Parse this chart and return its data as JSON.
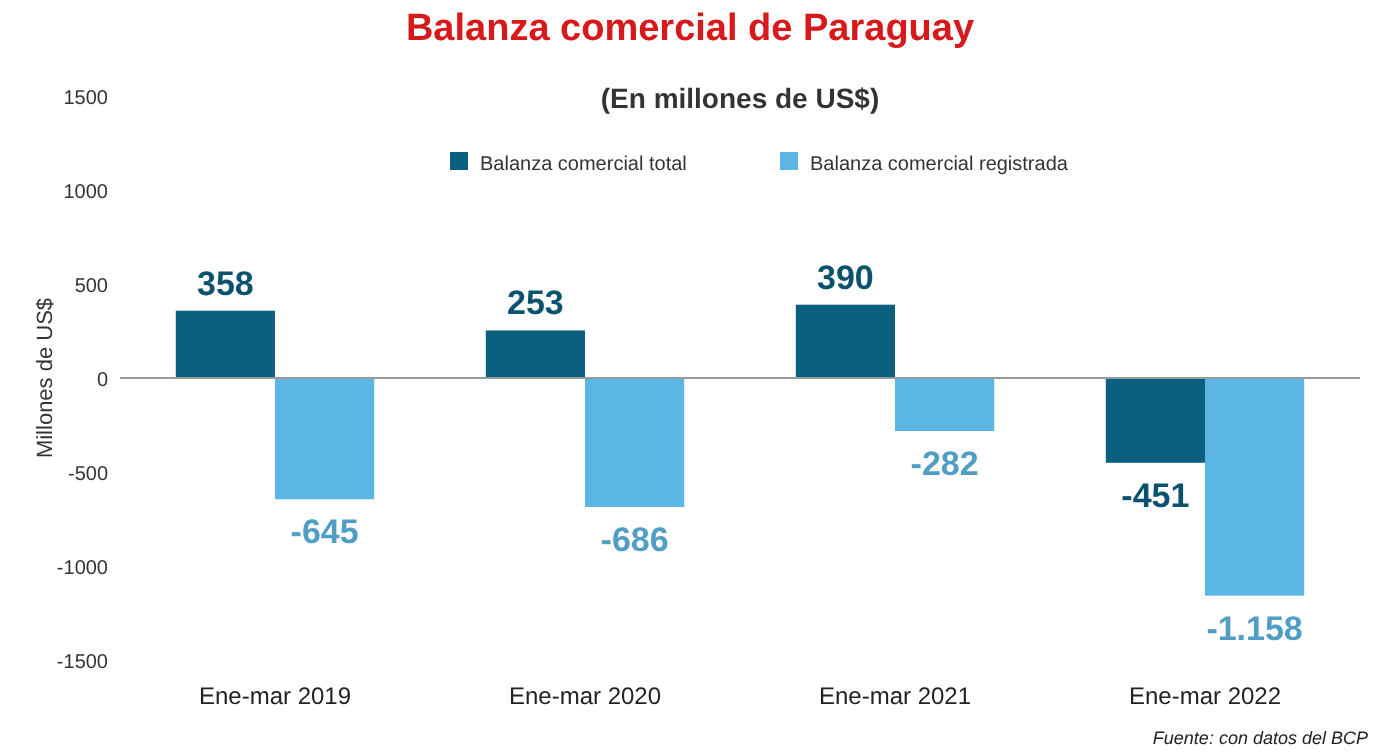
{
  "chart_data": {
    "type": "bar",
    "title": "Balanza comercial de Paraguay",
    "subtitle": "(En millones de US$)",
    "ylabel": "Millones de US$",
    "categories": [
      "Ene-mar 2019",
      "Ene-mar 2020",
      "Ene-mar 2021",
      "Ene-mar 2022"
    ],
    "series": [
      {
        "name": "Balanza comercial total",
        "color": "#0b5f7f",
        "values": [
          358,
          253,
          390,
          -451
        ],
        "value_labels": [
          "358",
          "253",
          "390",
          "-451"
        ]
      },
      {
        "name": "Balanza comercial registrada",
        "color": "#5cb6e4",
        "values": [
          -645,
          -686,
          -282,
          -1158
        ],
        "value_labels": [
          "-645",
          "-686",
          "-282",
          "-1.158"
        ]
      }
    ],
    "ylim": [
      -1500,
      1500
    ],
    "yticks": [
      -1500,
      -1000,
      -500,
      0,
      500,
      1000,
      1500
    ],
    "legend": "top",
    "annotations": [
      "Fuente: con datos del BCP"
    ]
  }
}
